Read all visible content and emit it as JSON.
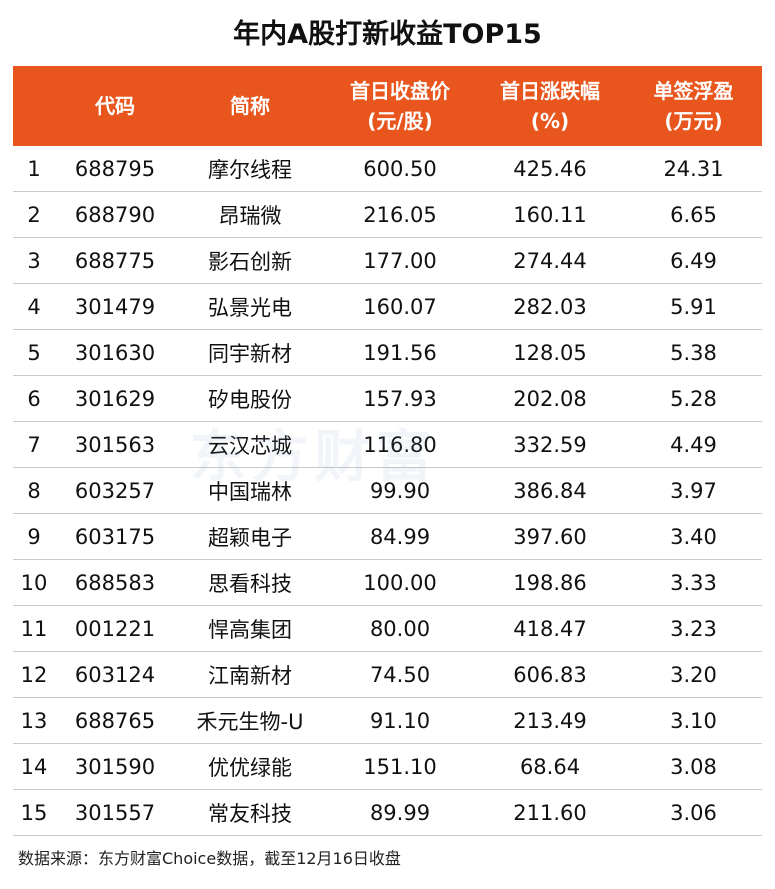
{
  "title": "年内A股打新收益TOP15",
  "table": {
    "header": [
      "代码",
      "简称",
      "首日收盘价\n(元/股)",
      "首日涨跌幅\n(%)",
      "单签浮盈\n(万元)"
    ],
    "rows": [
      [
        "1",
        "688795",
        "摩尔线程",
        "600.50",
        "425.46",
        "24.31"
      ],
      [
        "2",
        "688790",
        "昂瑞微",
        "216.05",
        "160.11",
        "6.65"
      ],
      [
        "3",
        "688775",
        "影石创新",
        "177.00",
        "274.44",
        "6.49"
      ],
      [
        "4",
        "301479",
        "弘景光电",
        "160.07",
        "282.03",
        "5.91"
      ],
      [
        "5",
        "301630",
        "同宇新材",
        "191.56",
        "128.05",
        "5.38"
      ],
      [
        "6",
        "301629",
        "矽电股份",
        "157.93",
        "202.08",
        "5.28"
      ],
      [
        "7",
        "301563",
        "云汉芯城",
        "116.80",
        "332.59",
        "4.49"
      ],
      [
        "8",
        "603257",
        "中国瑞林",
        "99.90",
        "386.84",
        "3.97"
      ],
      [
        "9",
        "603175",
        "超颖电子",
        "84.99",
        "397.60",
        "3.40"
      ],
      [
        "10",
        "688583",
        "思看科技",
        "100.00",
        "198.86",
        "3.33"
      ],
      [
        "11",
        "001221",
        "悍高集团",
        "80.00",
        "418.47",
        "3.23"
      ],
      [
        "12",
        "603124",
        "江南新材",
        "74.50",
        "606.83",
        "3.20"
      ],
      [
        "13",
        "688765",
        "禾元生物-U",
        "91.10",
        "213.49",
        "3.10"
      ],
      [
        "14",
        "301590",
        "优优绿能",
        "151.10",
        "68.64",
        "3.08"
      ],
      [
        "15",
        "301557",
        "常友科技",
        "89.99",
        "211.60",
        "3.06"
      ]
    ]
  },
  "watermark": "东方财富",
  "source": "数据来源：东方财富Choice数据，截至12月16日收盘"
}
